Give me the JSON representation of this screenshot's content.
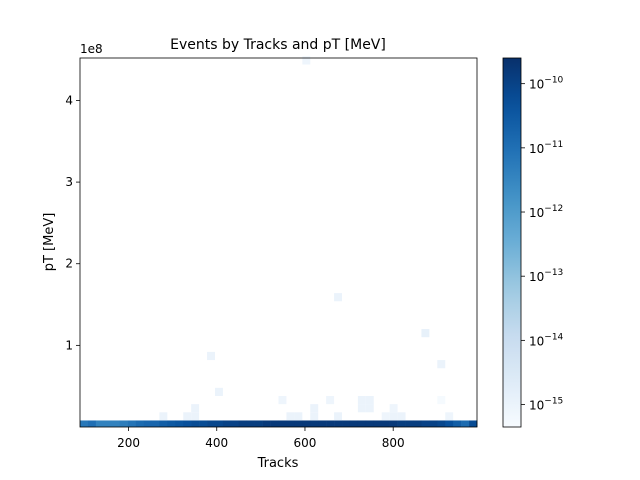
{
  "chart_data": {
    "type": "heatmap",
    "title": "Events by Tracks and pT [MeV]",
    "xlabel": "Tracks",
    "ylabel": "pT [MeV]",
    "y_offset_label": "1e8",
    "x_range": [
      90,
      990
    ],
    "y_range": [
      0,
      452000000
    ],
    "x_ticks": [
      {
        "value": 200,
        "label": "200"
      },
      {
        "value": 400,
        "label": "400"
      },
      {
        "value": 600,
        "label": "600"
      },
      {
        "value": 800,
        "label": "800"
      }
    ],
    "y_ticks": [
      {
        "value": 100000000,
        "label": "1"
      },
      {
        "value": 200000000,
        "label": "2"
      },
      {
        "value": 300000000,
        "label": "3"
      },
      {
        "value": 400000000,
        "label": "4"
      }
    ],
    "bin_width_x": 18,
    "bin_height_y": 10000000,
    "colormap": "Blues",
    "colorbar": {
      "scale": "log",
      "range_exponent": [
        -15.35,
        -9.6
      ],
      "ticks": [
        {
          "exponent": -15,
          "label": "10",
          "sup": "−15"
        },
        {
          "exponent": -14,
          "label": "10",
          "sup": "−14"
        },
        {
          "exponent": -13,
          "label": "10",
          "sup": "−13"
        },
        {
          "exponent": -12,
          "label": "10",
          "sup": "−12"
        },
        {
          "exponent": -11,
          "label": "10",
          "sup": "−11"
        },
        {
          "exponent": -10,
          "label": "10",
          "sup": "−10"
        }
      ]
    },
    "bottom_row": {
      "y0": 0,
      "y1": 8000000,
      "x_start": 90,
      "bin_width": 18,
      "exponents": [
        -11.2,
        -11.0,
        -11.4,
        -11.4,
        -11.4,
        -11.3,
        -11.1,
        -10.9,
        -10.8,
        -10.8,
        -10.6,
        -10.5,
        -10.4,
        -10.3,
        -10.2,
        -10.2,
        -10.1,
        -10.1,
        -10.0,
        -10.0,
        -9.9,
        -9.9,
        -9.9,
        -9.8,
        -9.8,
        -9.8,
        -9.8,
        -9.8,
        -9.8,
        -9.8,
        -9.8,
        -9.8,
        -9.8,
        -9.8,
        -9.8,
        -9.8,
        -9.8,
        -9.8,
        -9.8,
        -9.8,
        -9.9,
        -9.9,
        -9.9,
        -10.0,
        -10.0,
        -10.1,
        -10.3,
        -10.6,
        -10.9,
        -10.2
      ]
    },
    "cells": [
      {
        "x": 270,
        "y": 8000000,
        "e": -15.0
      },
      {
        "x": 324,
        "y": 8000000,
        "e": -15.0
      },
      {
        "x": 342,
        "y": 8000000,
        "e": -15.0
      },
      {
        "x": 342,
        "y": 18000000,
        "e": -15.0
      },
      {
        "x": 558,
        "y": 8000000,
        "e": -15.0
      },
      {
        "x": 576,
        "y": 8000000,
        "e": -15.0
      },
      {
        "x": 612,
        "y": 8000000,
        "e": -15.0
      },
      {
        "x": 612,
        "y": 18000000,
        "e": -15.0
      },
      {
        "x": 666,
        "y": 8000000,
        "e": -15.0
      },
      {
        "x": 792,
        "y": 8000000,
        "e": -15.0
      },
      {
        "x": 810,
        "y": 8000000,
        "e": -15.0
      },
      {
        "x": 774,
        "y": 8000000,
        "e": -15.1
      },
      {
        "x": 792,
        "y": 18000000,
        "e": -15.1
      },
      {
        "x": 918,
        "y": 8000000,
        "e": -15.1
      },
      {
        "x": 720,
        "y": 18000000,
        "e": -15.0
      },
      {
        "x": 738,
        "y": 18000000,
        "e": -15.0
      },
      {
        "x": 720,
        "y": 28000000,
        "e": -15.0
      },
      {
        "x": 738,
        "y": 28000000,
        "e": -15.0
      },
      {
        "x": 396,
        "y": 38000000,
        "e": -15.0
      },
      {
        "x": 540,
        "y": 28000000,
        "e": -15.1
      },
      {
        "x": 648,
        "y": 28000000,
        "e": -15.1
      },
      {
        "x": 900,
        "y": 28000000,
        "e": -15.3
      },
      {
        "x": 378,
        "y": 82000000,
        "e": -15.0
      },
      {
        "x": 900,
        "y": 72000000,
        "e": -15.0
      },
      {
        "x": 864,
        "y": 110000000,
        "e": -14.9
      },
      {
        "x": 666,
        "y": 154000000,
        "e": -15.0
      },
      {
        "x": 594,
        "y": 444000000,
        "e": -15.1
      }
    ]
  }
}
